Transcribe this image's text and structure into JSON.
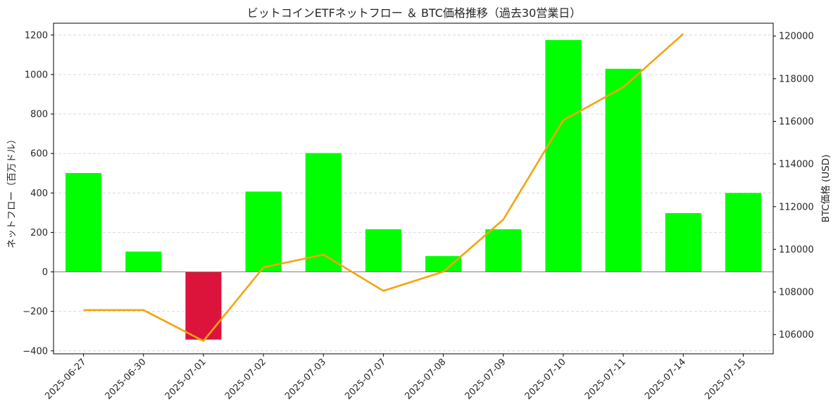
{
  "chart_data": {
    "type": "bar",
    "title": "ビットコインETFネットフロー ＆ BTC価格推移（過去30営業日）",
    "xlabel": "",
    "ylabel": "ネットフロー（百万ドル）",
    "y2label": "BTC価格 (USD)",
    "categories": [
      "2025-06-27",
      "2025-06-30",
      "2025-07-01",
      "2025-07-02",
      "2025-07-03",
      "2025-07-07",
      "2025-07-08",
      "2025-07-09",
      "2025-07-10",
      "2025-07-11",
      "2025-07-14",
      "2025-07-15"
    ],
    "series": [
      {
        "type": "bar",
        "axis": "left",
        "values": [
          501,
          103,
          -343,
          407,
          602,
          216,
          80,
          216,
          1175,
          1029,
          298,
          400
        ]
      },
      {
        "type": "line",
        "axis": "right",
        "values": [
          107150,
          107150,
          105700,
          109150,
          109750,
          108050,
          108950,
          111400,
          116050,
          117600,
          120100,
          null
        ]
      }
    ],
    "ylim": [
      -415,
      1260
    ],
    "y_ticks": [
      -400,
      -200,
      0,
      200,
      400,
      600,
      800,
      1000,
      1200
    ],
    "y2lim": [
      105100,
      120600
    ],
    "y2_ticks": [
      106000,
      108000,
      110000,
      112000,
      114000,
      116000,
      118000,
      120000
    ],
    "grid": "horizontal-dashed",
    "colors": {
      "positive": "#00ff00",
      "negative": "#dc143c",
      "price_line": "#f5a30f",
      "zero_line": "#808080",
      "grid": "#d9d9d9"
    }
  }
}
